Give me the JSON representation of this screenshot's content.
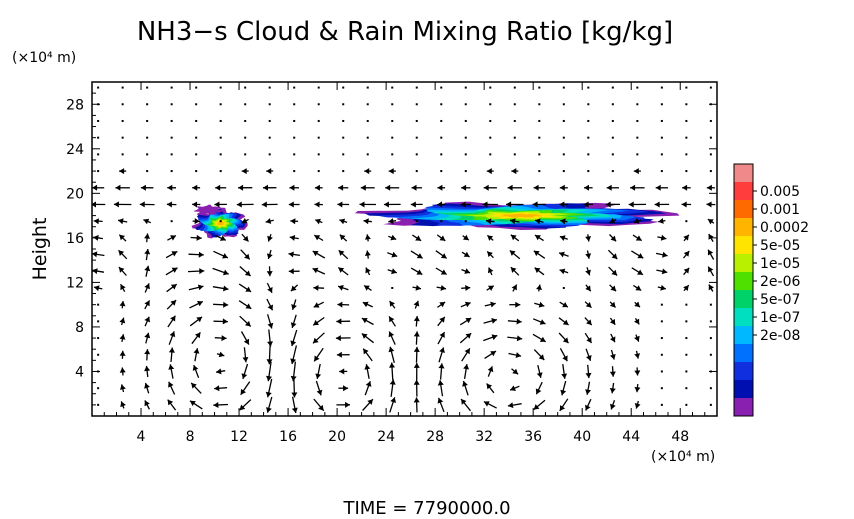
{
  "chart_data": {
    "type": "heatmap",
    "title": "NH3−s Cloud & Rain Mixing Ratio [kg/kg]",
    "ylabel": "Height",
    "y_unit": "(×10⁴ m)",
    "x_unit": "(×10⁴ m)",
    "xlim": [
      0,
      51
    ],
    "ylim": [
      0,
      30
    ],
    "x_ticks": [
      "4",
      "8",
      "12",
      "16",
      "20",
      "24",
      "28",
      "32",
      "36",
      "40",
      "44",
      "48"
    ],
    "y_ticks": [
      "4",
      "8",
      "12",
      "16",
      "20",
      "24",
      "28"
    ],
    "x_tick_values": [
      4,
      8,
      12,
      16,
      20,
      24,
      28,
      32,
      36,
      40,
      44,
      48
    ],
    "y_tick_values": [
      4,
      8,
      12,
      16,
      20,
      24,
      28
    ],
    "colorbar": {
      "labels": [
        "0.005",
        "0.001",
        "0.0002",
        "5e-05",
        "1e-05",
        "2e-06",
        "5e-07",
        "1e-07",
        "2e-08"
      ],
      "colors": [
        "#f08a8a",
        "#ff3d3d",
        "#ff6a00",
        "#ffb400",
        "#ffe400",
        "#b8f000",
        "#4fe000",
        "#00d26a",
        "#00e0c0",
        "#00b8ff",
        "#0070ff",
        "#1030e0",
        "#0010b0",
        "#8a20b0"
      ]
    },
    "time_label": "TIME  =  7790000.0",
    "cloud_regions": [
      {
        "x_center": 10.5,
        "y_center": 17.3,
        "x_half_width": 2.0,
        "y_half_height": 1.2,
        "peak_level": 3
      },
      {
        "x_center": 35.0,
        "y_center": 18.0,
        "x_half_width": 11.5,
        "y_half_height": 1.1,
        "peak_level": 3
      },
      {
        "x_center": 9.5,
        "y_center": 18.5,
        "x_half_width": 1.0,
        "y_half_height": 0.4,
        "peak_level": 13
      }
    ],
    "circulation_cells": [
      {
        "x_center": 10.5,
        "y_center": 5.0,
        "x_radius": 4.5,
        "y_radius": 6.0,
        "direction": "clockwise"
      },
      {
        "x_center": 20.5,
        "y_center": 3.5,
        "x_radius": 4.5,
        "y_radius": 5.0,
        "direction": "counterclockwise"
      },
      {
        "x_center": 34.0,
        "y_center": 3.5,
        "x_radius": 6.0,
        "y_radius": 5.0,
        "direction": "clockwise"
      }
    ]
  }
}
